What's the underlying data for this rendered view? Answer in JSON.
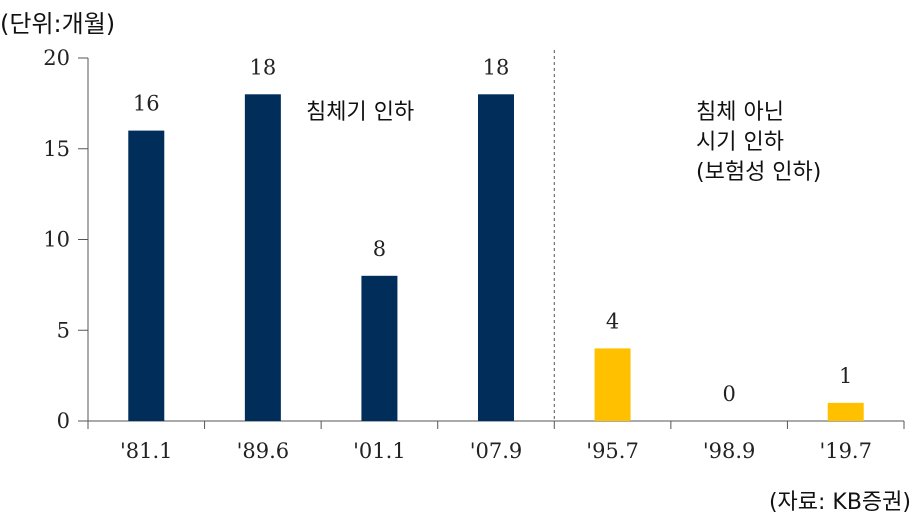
{
  "unit_label": "(단위:개월)",
  "source_label": "(자료: KB증권)",
  "annotations": {
    "recession": "침체기 인하",
    "non_recession": [
      "침체 아닌",
      "시기 인하",
      "(보험성 인하)"
    ]
  },
  "chart_data": {
    "type": "bar",
    "categories": [
      "'81.1",
      "'89.6",
      "'01.1",
      "'07.9",
      "'95.7",
      "'98.9",
      "'19.7"
    ],
    "values": [
      16,
      18,
      8,
      18,
      4,
      0,
      1
    ],
    "groups": [
      "recession",
      "recession",
      "recession",
      "recession",
      "non_recession",
      "non_recession",
      "non_recession"
    ],
    "yticks": [
      0,
      5,
      10,
      15,
      20
    ],
    "ylim": [
      0,
      20
    ],
    "colors": {
      "recession": "#002d5a",
      "non_recession": "#ffc000"
    },
    "divider_after_index": 3
  }
}
